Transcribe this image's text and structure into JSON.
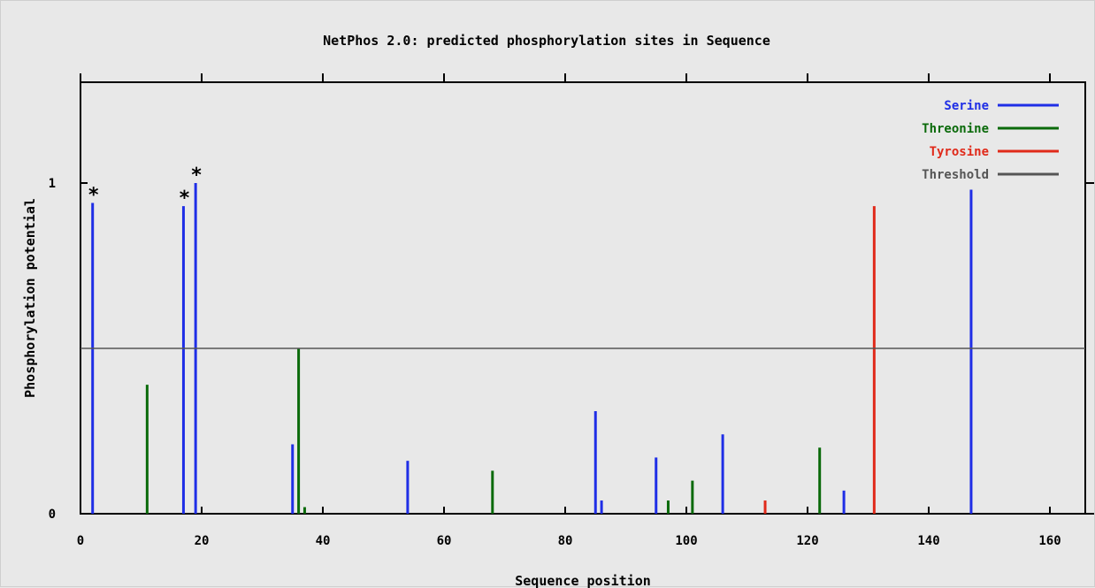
{
  "chart_data": {
    "type": "bar",
    "title": "NetPhos 2.0: predicted phosphorylation sites in Sequence",
    "xlabel": "Sequence position",
    "ylabel": "Phosphorylation potential",
    "xlim": [
      0,
      166
    ],
    "ylim": [
      0,
      1.3
    ],
    "x_ticks": [
      0,
      20,
      40,
      60,
      80,
      100,
      120,
      140,
      160
    ],
    "y_ticks": [
      0,
      1
    ],
    "threshold": 0.5,
    "legend_position": "top-right",
    "grid": false,
    "series": [
      {
        "name": "Serine",
        "color": "#1f2ee6",
        "points": [
          {
            "x": 2,
            "y": 0.94
          },
          {
            "x": 17,
            "y": 0.93
          },
          {
            "x": 19,
            "y": 1.0
          },
          {
            "x": 35,
            "y": 0.21
          },
          {
            "x": 54,
            "y": 0.16
          },
          {
            "x": 85,
            "y": 0.31
          },
          {
            "x": 86,
            "y": 0.04
          },
          {
            "x": 95,
            "y": 0.17
          },
          {
            "x": 106,
            "y": 0.24
          },
          {
            "x": 126,
            "y": 0.07
          },
          {
            "x": 147,
            "y": 0.98
          }
        ]
      },
      {
        "name": "Threonine",
        "color": "#0a6a0a",
        "points": [
          {
            "x": 11,
            "y": 0.39
          },
          {
            "x": 36,
            "y": 0.5
          },
          {
            "x": 37,
            "y": 0.02
          },
          {
            "x": 68,
            "y": 0.13
          },
          {
            "x": 97,
            "y": 0.04
          },
          {
            "x": 101,
            "y": 0.1
          },
          {
            "x": 122,
            "y": 0.2
          }
        ]
      },
      {
        "name": "Tyrosine",
        "color": "#e02a1a",
        "points": [
          {
            "x": 113,
            "y": 0.04
          },
          {
            "x": 131,
            "y": 0.93
          }
        ]
      }
    ],
    "threshold_series": {
      "name": "Threshold",
      "color": "#555555"
    },
    "annotations": [
      {
        "x": 2,
        "text": "*"
      },
      {
        "x": 17,
        "text": "*"
      },
      {
        "x": 19,
        "text": "*"
      }
    ]
  }
}
